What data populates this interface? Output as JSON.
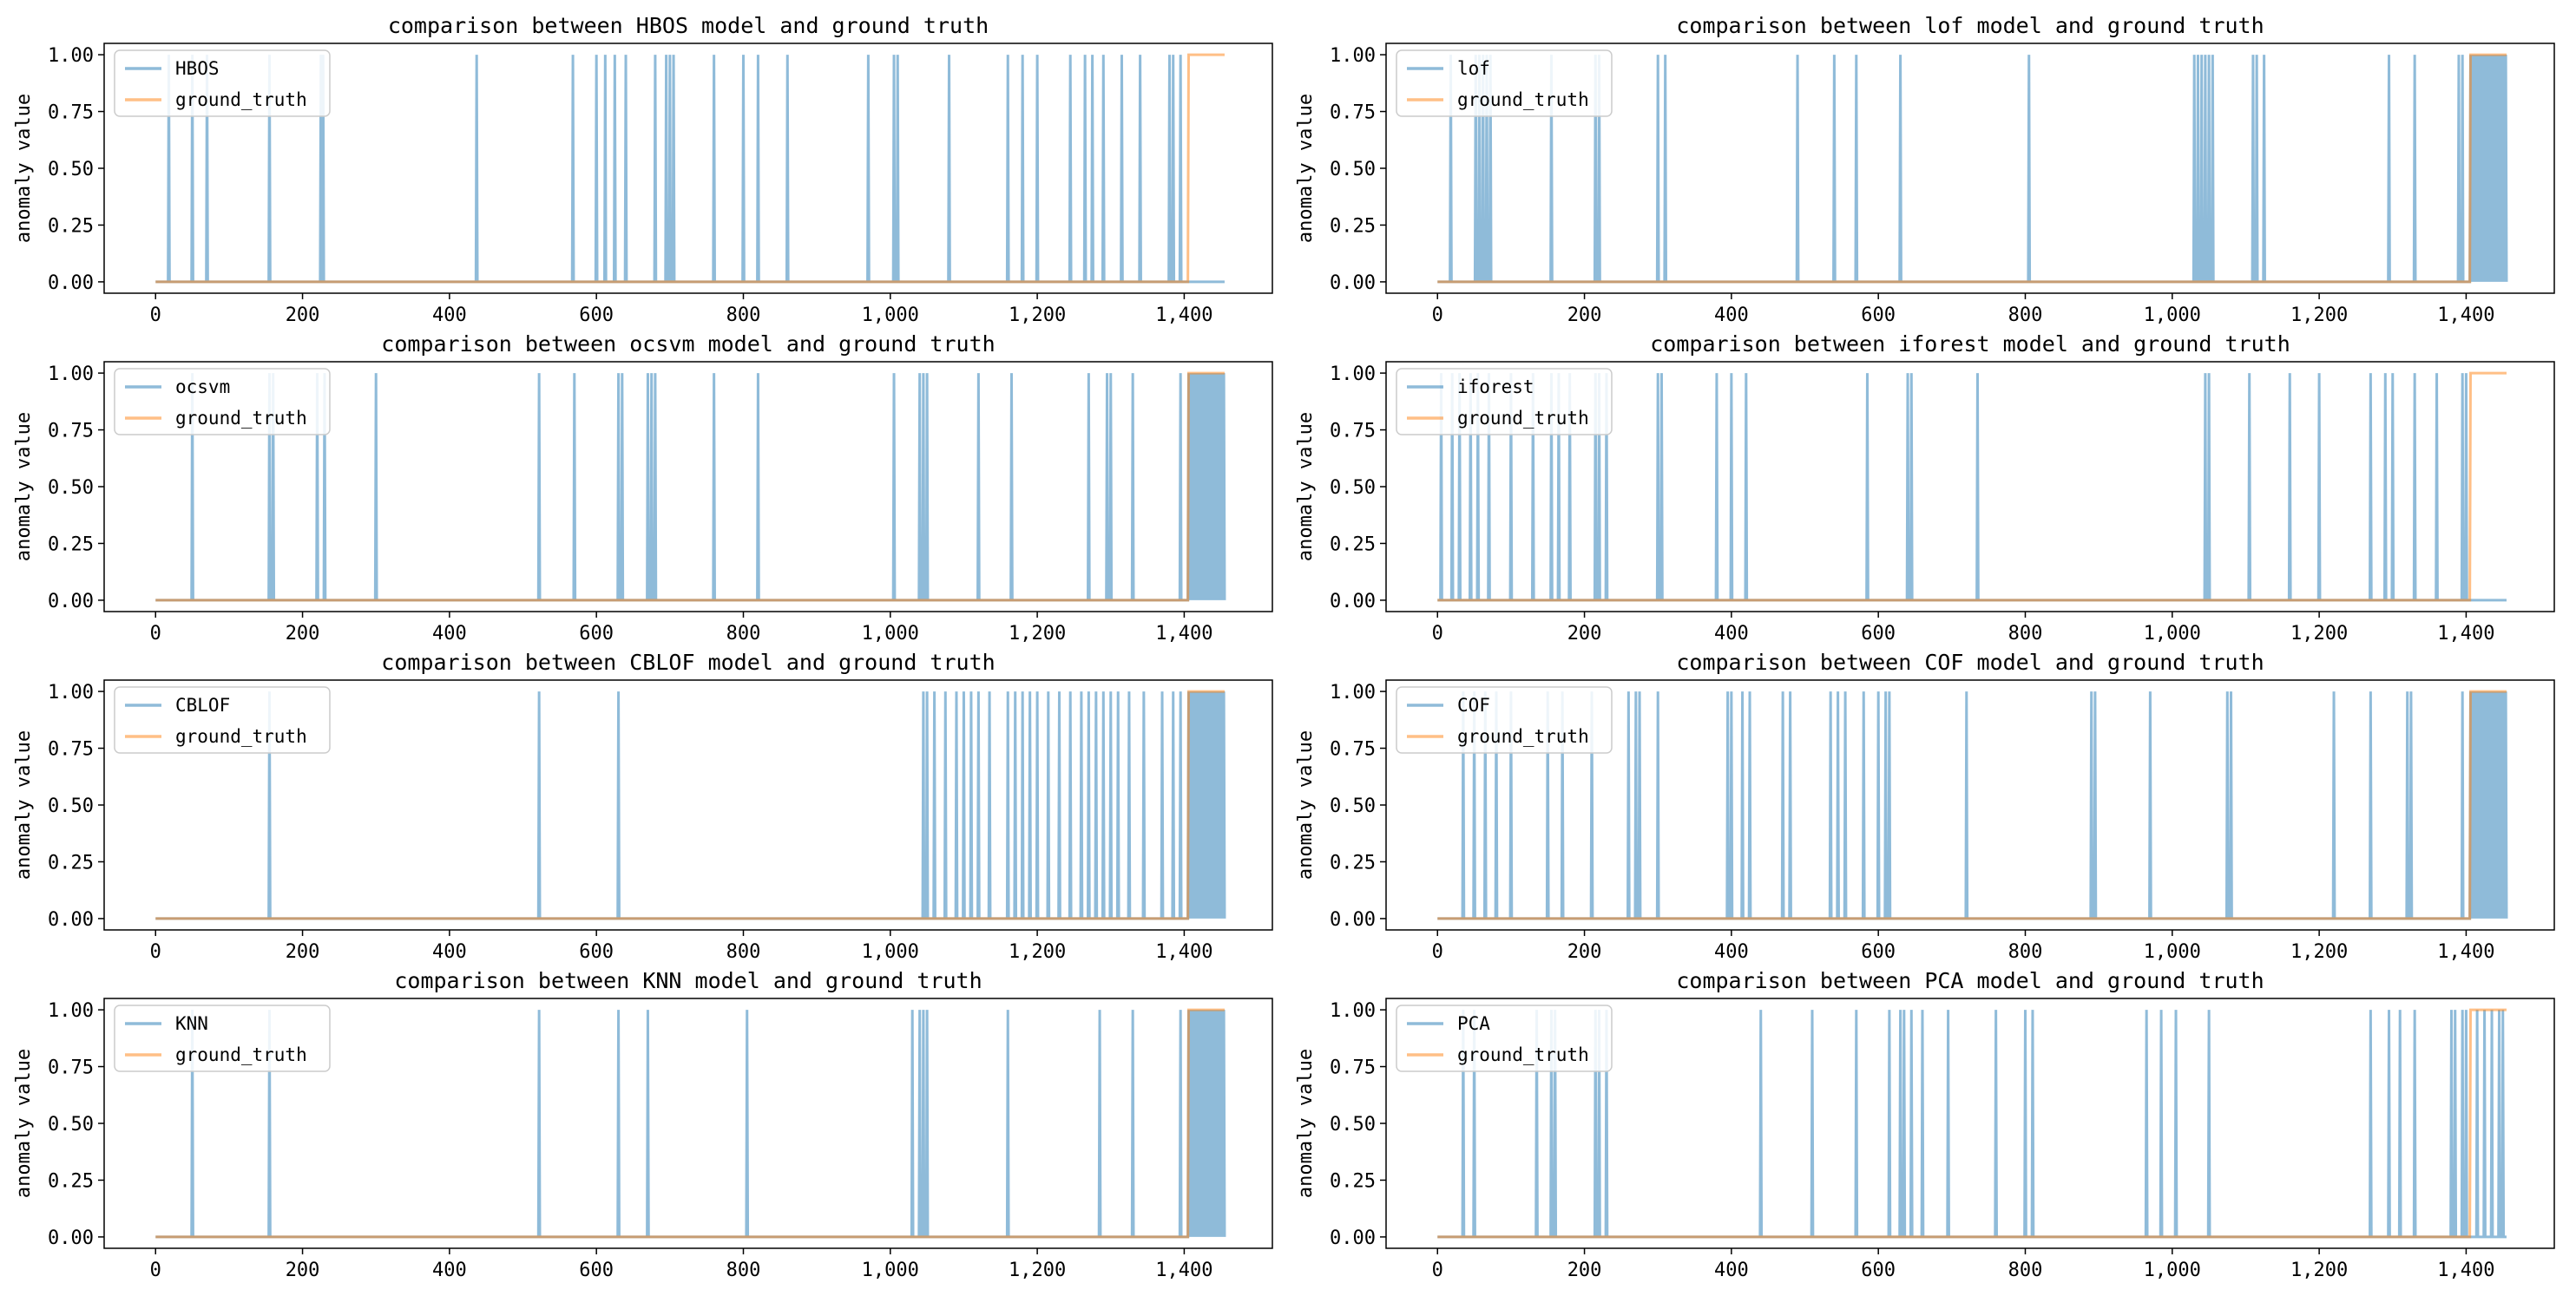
{
  "figure_title": "",
  "chart_data": [
    {
      "type": "line",
      "title": "comparison between HBOS model and ground truth",
      "xlabel": "",
      "ylabel": "anomaly value",
      "xlim": [
        -70,
        1520
      ],
      "ylim": [
        -0.05,
        1.05
      ],
      "xticks": [
        0,
        200,
        400,
        600,
        800,
        1000,
        1200,
        1400
      ],
      "xtick_labels": [
        "0",
        "200",
        "400",
        "600",
        "800",
        "1,000",
        "1,200",
        "1,400"
      ],
      "yticks": [
        0,
        0.25,
        0.5,
        0.75,
        1.0
      ],
      "ytick_labels": [
        "0.00",
        "0.25",
        "0.50",
        "0.75",
        "1.00"
      ],
      "legend": [
        "HBOS",
        "ground_truth"
      ],
      "legend_position": "upper-left",
      "series": [
        {
          "name": "HBOS",
          "color": "#1f77b4",
          "opacity": 0.5,
          "n_points": 1456,
          "baseline": 0,
          "anomaly_value": 1,
          "anomaly_indices": [
            18,
            50,
            70,
            155,
            225,
            228,
            437,
            568,
            600,
            612,
            625,
            640,
            680,
            695,
            700,
            705,
            760,
            800,
            820,
            860,
            970,
            1005,
            1010,
            1080,
            1160,
            1180,
            1200,
            1245,
            1265,
            1275,
            1290,
            1315,
            1340,
            1380,
            1385,
            1395
          ]
        },
        {
          "name": "ground_truth",
          "color": "#ff7f0e",
          "opacity": 0.5,
          "n_points": 1456,
          "baseline": 0,
          "anomaly_value": 1,
          "anomaly_start": 1406
        }
      ]
    },
    {
      "type": "line",
      "title": "comparison between lof model and ground truth",
      "xlabel": "",
      "ylabel": "anomaly value",
      "xlim": [
        -70,
        1520
      ],
      "ylim": [
        -0.05,
        1.05
      ],
      "xticks": [
        0,
        200,
        400,
        600,
        800,
        1000,
        1200,
        1400
      ],
      "xtick_labels": [
        "0",
        "200",
        "400",
        "600",
        "800",
        "1,000",
        "1,200",
        "1,400"
      ],
      "yticks": [
        0,
        0.25,
        0.5,
        0.75,
        1.0
      ],
      "ytick_labels": [
        "0.00",
        "0.25",
        "0.50",
        "0.75",
        "1.00"
      ],
      "legend": [
        "lof",
        "ground_truth"
      ],
      "legend_position": "upper-left",
      "series": [
        {
          "name": "lof",
          "color": "#1f77b4",
          "opacity": 0.5,
          "n_points": 1456,
          "baseline": 0,
          "anomaly_value": 1,
          "dense_from": 1406,
          "anomaly_indices": [
            18,
            52,
            57,
            62,
            67,
            72,
            155,
            215,
            220,
            300,
            310,
            490,
            540,
            570,
            630,
            805,
            1030,
            1035,
            1040,
            1045,
            1050,
            1055,
            1110,
            1115,
            1125,
            1295,
            1330,
            1390,
            1395
          ]
        },
        {
          "name": "ground_truth",
          "color": "#ff7f0e",
          "opacity": 0.5,
          "n_points": 1456,
          "baseline": 0,
          "anomaly_value": 1,
          "anomaly_start": 1406
        }
      ]
    },
    {
      "type": "line",
      "title": "comparison between ocsvm model and ground truth",
      "xlabel": "",
      "ylabel": "anomaly value",
      "xlim": [
        -70,
        1520
      ],
      "ylim": [
        -0.05,
        1.05
      ],
      "xticks": [
        0,
        200,
        400,
        600,
        800,
        1000,
        1200,
        1400
      ],
      "xtick_labels": [
        "0",
        "200",
        "400",
        "600",
        "800",
        "1,000",
        "1,200",
        "1,400"
      ],
      "yticks": [
        0,
        0.25,
        0.5,
        0.75,
        1.0
      ],
      "ytick_labels": [
        "0.00",
        "0.25",
        "0.50",
        "0.75",
        "1.00"
      ],
      "legend": [
        "ocsvm",
        "ground_truth"
      ],
      "legend_position": "upper-left",
      "series": [
        {
          "name": "ocsvm",
          "color": "#1f77b4",
          "opacity": 0.5,
          "n_points": 1456,
          "baseline": 0,
          "anomaly_value": 1,
          "dense_from": 1406,
          "anomaly_indices": [
            50,
            155,
            160,
            220,
            230,
            300,
            522,
            570,
            630,
            635,
            670,
            675,
            680,
            760,
            820,
            1005,
            1040,
            1045,
            1050,
            1120,
            1165,
            1270,
            1295,
            1300,
            1330,
            1395
          ]
        },
        {
          "name": "ground_truth",
          "color": "#ff7f0e",
          "opacity": 0.5,
          "n_points": 1456,
          "baseline": 0,
          "anomaly_value": 1,
          "anomaly_start": 1406
        }
      ]
    },
    {
      "type": "line",
      "title": "comparison between iforest model and ground truth",
      "xlabel": "",
      "ylabel": "anomaly value",
      "xlim": [
        -70,
        1520
      ],
      "ylim": [
        -0.05,
        1.05
      ],
      "xticks": [
        0,
        200,
        400,
        600,
        800,
        1000,
        1200,
        1400
      ],
      "xtick_labels": [
        "0",
        "200",
        "400",
        "600",
        "800",
        "1,000",
        "1,200",
        "1,400"
      ],
      "yticks": [
        0,
        0.25,
        0.5,
        0.75,
        1.0
      ],
      "ytick_labels": [
        "0.00",
        "0.25",
        "0.50",
        "0.75",
        "1.00"
      ],
      "legend": [
        "iforest",
        "ground_truth"
      ],
      "legend_position": "upper-left",
      "series": [
        {
          "name": "iforest",
          "color": "#1f77b4",
          "opacity": 0.5,
          "n_points": 1456,
          "baseline": 0,
          "anomaly_value": 1,
          "anomaly_indices": [
            5,
            20,
            30,
            45,
            55,
            70,
            100,
            130,
            155,
            165,
            180,
            215,
            220,
            230,
            300,
            305,
            380,
            400,
            420,
            585,
            640,
            645,
            735,
            1045,
            1050,
            1105,
            1160,
            1200,
            1270,
            1290,
            1300,
            1330,
            1360,
            1395,
            1400
          ]
        },
        {
          "name": "ground_truth",
          "color": "#ff7f0e",
          "opacity": 0.5,
          "n_points": 1456,
          "baseline": 0,
          "anomaly_value": 1,
          "anomaly_start": 1406
        }
      ]
    },
    {
      "type": "line",
      "title": "comparison between CBLOF model and ground truth",
      "xlabel": "",
      "ylabel": "anomaly value",
      "xlim": [
        -70,
        1520
      ],
      "ylim": [
        -0.05,
        1.05
      ],
      "xticks": [
        0,
        200,
        400,
        600,
        800,
        1000,
        1200,
        1400
      ],
      "xtick_labels": [
        "0",
        "200",
        "400",
        "600",
        "800",
        "1,000",
        "1,200",
        "1,400"
      ],
      "yticks": [
        0,
        0.25,
        0.5,
        0.75,
        1.0
      ],
      "ytick_labels": [
        "0.00",
        "0.25",
        "0.50",
        "0.75",
        "1.00"
      ],
      "legend": [
        "CBLOF",
        "ground_truth"
      ],
      "legend_position": "upper-left",
      "series": [
        {
          "name": "CBLOF",
          "color": "#1f77b4",
          "opacity": 0.5,
          "n_points": 1456,
          "baseline": 0,
          "anomaly_value": 1,
          "dense_from": 1406,
          "anomaly_indices": [
            155,
            522,
            630,
            1045,
            1050,
            1060,
            1075,
            1090,
            1100,
            1110,
            1120,
            1135,
            1160,
            1170,
            1180,
            1190,
            1200,
            1215,
            1230,
            1245,
            1260,
            1270,
            1280,
            1290,
            1300,
            1310,
            1325,
            1345,
            1370,
            1385,
            1395
          ]
        },
        {
          "name": "ground_truth",
          "color": "#ff7f0e",
          "opacity": 0.5,
          "n_points": 1456,
          "baseline": 0,
          "anomaly_value": 1,
          "anomaly_start": 1406
        }
      ]
    },
    {
      "type": "line",
      "title": "comparison between COF model and ground truth",
      "xlabel": "",
      "ylabel": "anomaly value",
      "xlim": [
        -70,
        1520
      ],
      "ylim": [
        -0.05,
        1.05
      ],
      "xticks": [
        0,
        200,
        400,
        600,
        800,
        1000,
        1200,
        1400
      ],
      "xtick_labels": [
        "0",
        "200",
        "400",
        "600",
        "800",
        "1,000",
        "1,200",
        "1,400"
      ],
      "yticks": [
        0,
        0.25,
        0.5,
        0.75,
        1.0
      ],
      "ytick_labels": [
        "0.00",
        "0.25",
        "0.50",
        "0.75",
        "1.00"
      ],
      "legend": [
        "COF",
        "ground_truth"
      ],
      "legend_position": "upper-left",
      "series": [
        {
          "name": "COF",
          "color": "#1f77b4",
          "opacity": 0.5,
          "n_points": 1456,
          "baseline": 0,
          "anomaly_value": 1,
          "dense_from": 1406,
          "anomaly_indices": [
            35,
            50,
            65,
            80,
            100,
            150,
            170,
            210,
            260,
            270,
            275,
            300,
            395,
            400,
            415,
            425,
            470,
            480,
            535,
            545,
            555,
            580,
            600,
            610,
            615,
            720,
            890,
            895,
            970,
            1075,
            1080,
            1220,
            1270,
            1320,
            1325,
            1395
          ]
        },
        {
          "name": "ground_truth",
          "color": "#ff7f0e",
          "opacity": 0.5,
          "n_points": 1456,
          "baseline": 0,
          "anomaly_value": 1,
          "anomaly_start": 1406
        }
      ]
    },
    {
      "type": "line",
      "title": "comparison between KNN model and ground truth",
      "xlabel": "",
      "ylabel": "anomaly value",
      "xlim": [
        -70,
        1520
      ],
      "ylim": [
        -0.05,
        1.05
      ],
      "xticks": [
        0,
        200,
        400,
        600,
        800,
        1000,
        1200,
        1400
      ],
      "xtick_labels": [
        "0",
        "200",
        "400",
        "600",
        "800",
        "1,000",
        "1,200",
        "1,400"
      ],
      "yticks": [
        0,
        0.25,
        0.5,
        0.75,
        1.0
      ],
      "ytick_labels": [
        "0.00",
        "0.25",
        "0.50",
        "0.75",
        "1.00"
      ],
      "legend": [
        "KNN",
        "ground_truth"
      ],
      "legend_position": "upper-left",
      "series": [
        {
          "name": "KNN",
          "color": "#1f77b4",
          "opacity": 0.5,
          "n_points": 1456,
          "baseline": 0,
          "anomaly_value": 1,
          "dense_from": 1406,
          "anomaly_indices": [
            50,
            155,
            522,
            630,
            670,
            805,
            1030,
            1040,
            1045,
            1050,
            1160,
            1285,
            1330,
            1395
          ]
        },
        {
          "name": "ground_truth",
          "color": "#ff7f0e",
          "opacity": 0.5,
          "n_points": 1456,
          "baseline": 0,
          "anomaly_value": 1,
          "anomaly_start": 1406
        }
      ]
    },
    {
      "type": "line",
      "title": "comparison between PCA model and ground truth",
      "xlabel": "",
      "ylabel": "anomaly value",
      "xlim": [
        -70,
        1520
      ],
      "ylim": [
        -0.05,
        1.05
      ],
      "xticks": [
        0,
        200,
        400,
        600,
        800,
        1000,
        1200,
        1400
      ],
      "xtick_labels": [
        "0",
        "200",
        "400",
        "600",
        "800",
        "1,000",
        "1,200",
        "1,400"
      ],
      "yticks": [
        0,
        0.25,
        0.5,
        0.75,
        1.0
      ],
      "ytick_labels": [
        "0.00",
        "0.25",
        "0.50",
        "0.75",
        "1.00"
      ],
      "legend": [
        "PCA",
        "ground_truth"
      ],
      "legend_position": "upper-left",
      "series": [
        {
          "name": "PCA",
          "color": "#1f77b4",
          "opacity": 0.5,
          "n_points": 1456,
          "baseline": 0,
          "anomaly_value": 1,
          "anomaly_indices": [
            35,
            50,
            135,
            155,
            160,
            215,
            220,
            230,
            440,
            510,
            570,
            615,
            630,
            635,
            645,
            660,
            695,
            760,
            800,
            810,
            965,
            985,
            1005,
            1050,
            1270,
            1295,
            1310,
            1330,
            1380,
            1385,
            1395,
            1400,
            1415,
            1425,
            1435,
            1445,
            1450
          ]
        },
        {
          "name": "ground_truth",
          "color": "#ff7f0e",
          "opacity": 0.5,
          "n_points": 1456,
          "baseline": 0,
          "anomaly_value": 1,
          "anomaly_start": 1406
        }
      ]
    }
  ]
}
